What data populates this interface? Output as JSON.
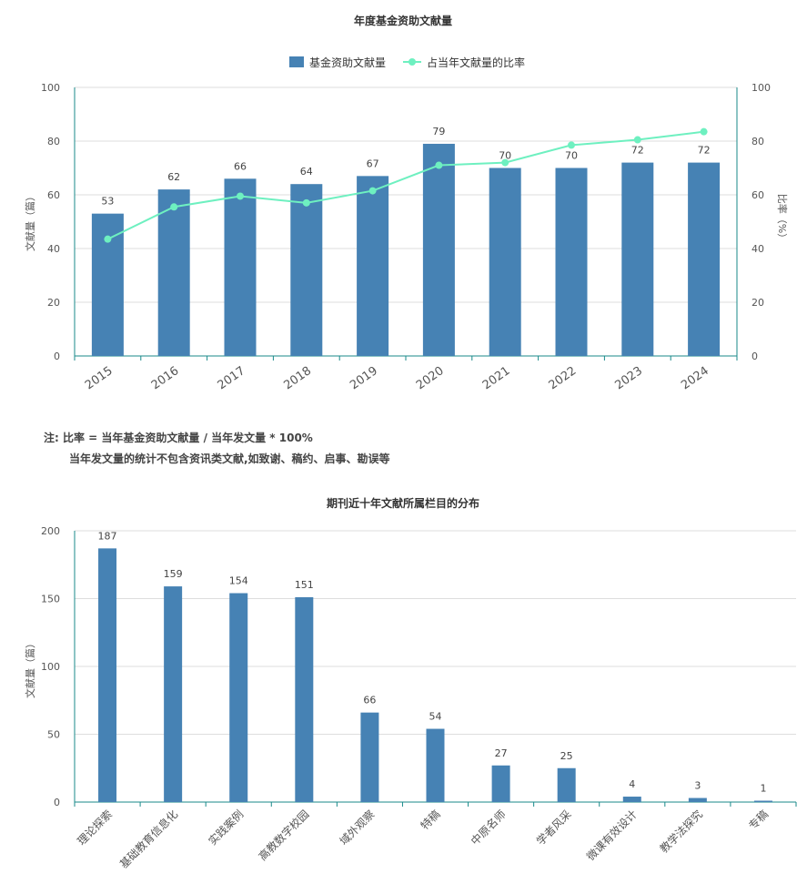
{
  "chart_data": [
    {
      "type": "bar+line",
      "title": "年度基金资助文献量",
      "categories": [
        "2015",
        "2016",
        "2017",
        "2018",
        "2019",
        "2020",
        "2021",
        "2022",
        "2023",
        "2024"
      ],
      "series": [
        {
          "name": "基金资助文献量",
          "type": "bar",
          "axis": "left",
          "color": "#4682b4",
          "values": [
            53,
            62,
            66,
            64,
            67,
            79,
            70,
            70,
            72,
            72
          ]
        },
        {
          "name": "占当年文献量的比率",
          "type": "line",
          "axis": "right",
          "color": "#6ef0c0",
          "values": [
            43.5,
            55.5,
            59.5,
            57,
            61.5,
            71,
            72,
            78.5,
            80.5,
            83.5
          ]
        }
      ],
      "ylabel": "文献量（篇）",
      "y2label": "比率（%）",
      "ylim": [
        0,
        100
      ],
      "y2lim": [
        0,
        100
      ],
      "yticks": [
        0,
        20,
        40,
        60,
        80,
        100
      ],
      "legend": "top-center",
      "grid": true
    },
    {
      "type": "bar",
      "title": "期刊近十年文献所属栏目的分布",
      "categories": [
        "理论探索",
        "基础教育信息化",
        "实践案例",
        "高教数字校园",
        "域外观察",
        "特稿",
        "中原名师",
        "学者风采",
        "微课有效设计",
        "教学法探究",
        "专稿"
      ],
      "values": [
        187,
        159,
        154,
        151,
        66,
        54,
        27,
        25,
        4,
        3,
        1
      ],
      "color": "#4682b4",
      "ylabel": "文献量（篇）",
      "ylim": [
        0,
        200
      ],
      "yticks": [
        0,
        50,
        100,
        150,
        200
      ],
      "grid": true
    }
  ],
  "note": {
    "line1": "注:   比率 = 当年基金资助文献量 / 当年发文量 * 100%",
    "line2": "当年发文量的统计不包含资讯类文献,如致谢、稿约、启事、勘误等"
  }
}
